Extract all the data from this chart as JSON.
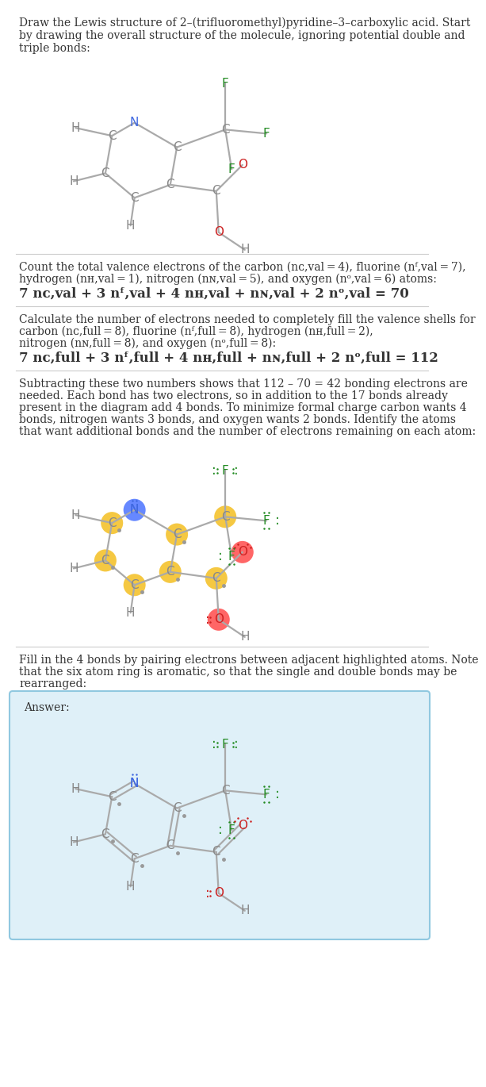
{
  "bg_color": "#ffffff",
  "answer_bg": "#dff0f8",
  "answer_border": "#90c8e0",
  "C_color": "#888888",
  "H_color": "#888888",
  "N_color": "#4169e1",
  "O_color": "#cc2222",
  "F_color": "#228b22",
  "highlight_C": "#f5c842",
  "highlight_N": "#6688ff",
  "highlight_O": "#ff6666",
  "text_color": "#333333",
  "title_lines": [
    "Draw the Lewis structure of 2–(trifluoromethyl)pyridine–3–carboxylic acid. Start",
    "by drawing the overall structure of the molecule, ignoring potential double and",
    "triple bonds:"
  ],
  "s2_lines": [
    "Count the total valence electrons of the carbon (nᴄ,val = 4), fluorine (nᶠ,val = 7),",
    "hydrogen (nʜ,val = 1), nitrogen (nɴ,val = 5), and oxygen (nᵒ,val = 6) atoms:"
  ],
  "s2_eq": "7 nᴄ,val + 3 nᶠ,val + 4 nʜ,val + nɴ,val + 2 nᵒ,val = 70",
  "s3_lines": [
    "Calculate the number of electrons needed to completely fill the valence shells for",
    "carbon (nᴄ,full = 8), fluorine (nᶠ,full = 8), hydrogen (nʜ,full = 2),",
    "nitrogen (nɴ,full = 8), and oxygen (nᵒ,full = 8):"
  ],
  "s3_eq": "7 nᴄ,full + 3 nᶠ,full + 4 nʜ,full + nɴ,full + 2 nᵒ,full = 112",
  "s4_lines": [
    "Subtracting these two numbers shows that 112 – 70 = 42 bonding electrons are",
    "needed. Each bond has two electrons, so in addition to the 17 bonds already",
    "present in the diagram add 4 bonds. To minimize formal charge carbon wants 4",
    "bonds, nitrogen wants 3 bonds, and oxygen wants 2 bonds. Identify the atoms",
    "that want additional bonds and the number of electrons remaining on each atom:"
  ],
  "s5_lines": [
    "Fill in the 4 bonds by pairing electrons between adjacent highlighted atoms. Note",
    "that the six atom ring is aromatic, so that the single and double bonds may be",
    "rearranged:"
  ],
  "answer_label": "Answer:"
}
